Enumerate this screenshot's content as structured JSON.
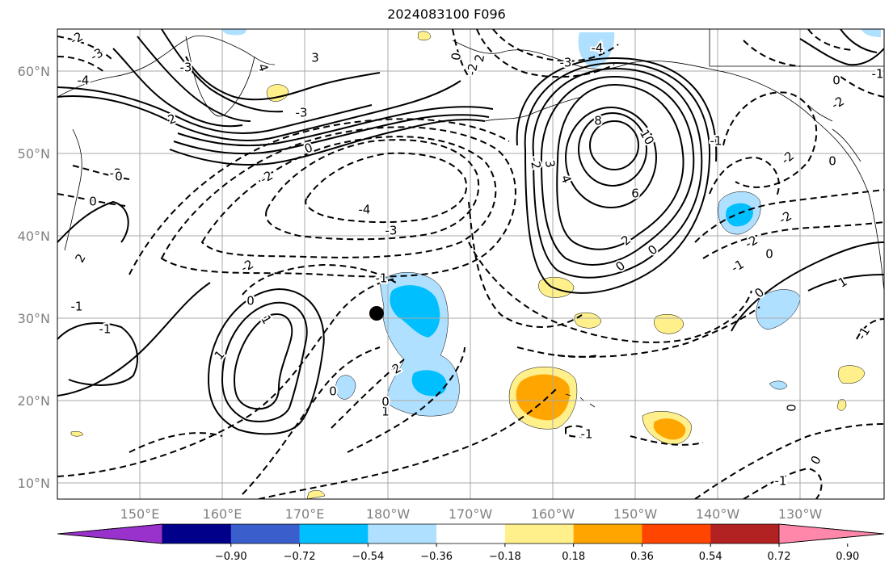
{
  "title": "2024083100 F096",
  "map": {
    "lat_labels": [
      "60°N",
      "50°N",
      "40°N",
      "30°N",
      "20°N",
      "10°N"
    ],
    "lon_labels": [
      "150°E",
      "160°E",
      "170°E",
      "180°W",
      "170°W",
      "160°W",
      "150°W",
      "140°W",
      "130°W"
    ],
    "storm_marker": {
      "lat": 30.5,
      "lon": -181.5
    }
  },
  "colorbar": {
    "ticks": [
      "−0.90",
      "−0.72",
      "−0.54",
      "−0.36",
      "−0.18",
      "0.18",
      "0.36",
      "0.54",
      "0.72",
      "0.90"
    ],
    "colors": [
      "#9932cc",
      "#00008b",
      "#3a5fcd",
      "#00bfff",
      "#b0e0ff",
      "#ffffff",
      "#fff08c",
      "#ffa500",
      "#ff4500",
      "#b22222",
      "#ff88aa"
    ]
  },
  "fill_colors": {
    "light_blue": "#b0e0ff",
    "blue": "#00bfff",
    "yellow": "#fff08c",
    "orange": "#ffa500"
  },
  "contour_labels": [
    {
      "text": "-2"
    },
    {
      "text": "-3"
    },
    {
      "text": "-4"
    },
    {
      "text": "-3"
    },
    {
      "text": "-2"
    },
    {
      "text": "2"
    },
    {
      "text": "4"
    },
    {
      "text": "0"
    },
    {
      "text": "-3"
    },
    {
      "text": "3"
    },
    {
      "text": "0"
    },
    {
      "text": "0"
    },
    {
      "text": "-1"
    },
    {
      "text": "-1"
    },
    {
      "text": "2"
    },
    {
      "text": "-2"
    },
    {
      "text": "0"
    },
    {
      "text": "-4"
    },
    {
      "text": "-3"
    },
    {
      "text": "-2"
    },
    {
      "text": "1"
    },
    {
      "text": "0"
    },
    {
      "text": "1"
    },
    {
      "text": "2"
    },
    {
      "text": "1"
    },
    {
      "text": "0"
    },
    {
      "text": "-1"
    },
    {
      "text": "-2"
    },
    {
      "text": "2"
    },
    {
      "text": "0"
    },
    {
      "text": "6"
    },
    {
      "text": "8"
    },
    {
      "text": "10"
    },
    {
      "text": "4"
    },
    {
      "text": "3"
    },
    {
      "text": "2"
    },
    {
      "text": "0"
    },
    {
      "text": "0"
    },
    {
      "text": "-3"
    },
    {
      "text": "-4"
    },
    {
      "text": "-2"
    },
    {
      "text": "-1"
    },
    {
      "text": "-2"
    },
    {
      "text": "0"
    },
    {
      "text": "0"
    },
    {
      "text": "1"
    },
    {
      "text": "-1"
    },
    {
      "text": "0"
    },
    {
      "text": "0"
    },
    {
      "text": "-1"
    },
    {
      "text": "-1"
    },
    {
      "text": "-2"
    },
    {
      "text": "-2"
    },
    {
      "text": "0"
    },
    {
      "text": "-1"
    },
    {
      "text": "-2"
    },
    {
      "text": "-1"
    },
    {
      "text": "0"
    }
  ]
}
